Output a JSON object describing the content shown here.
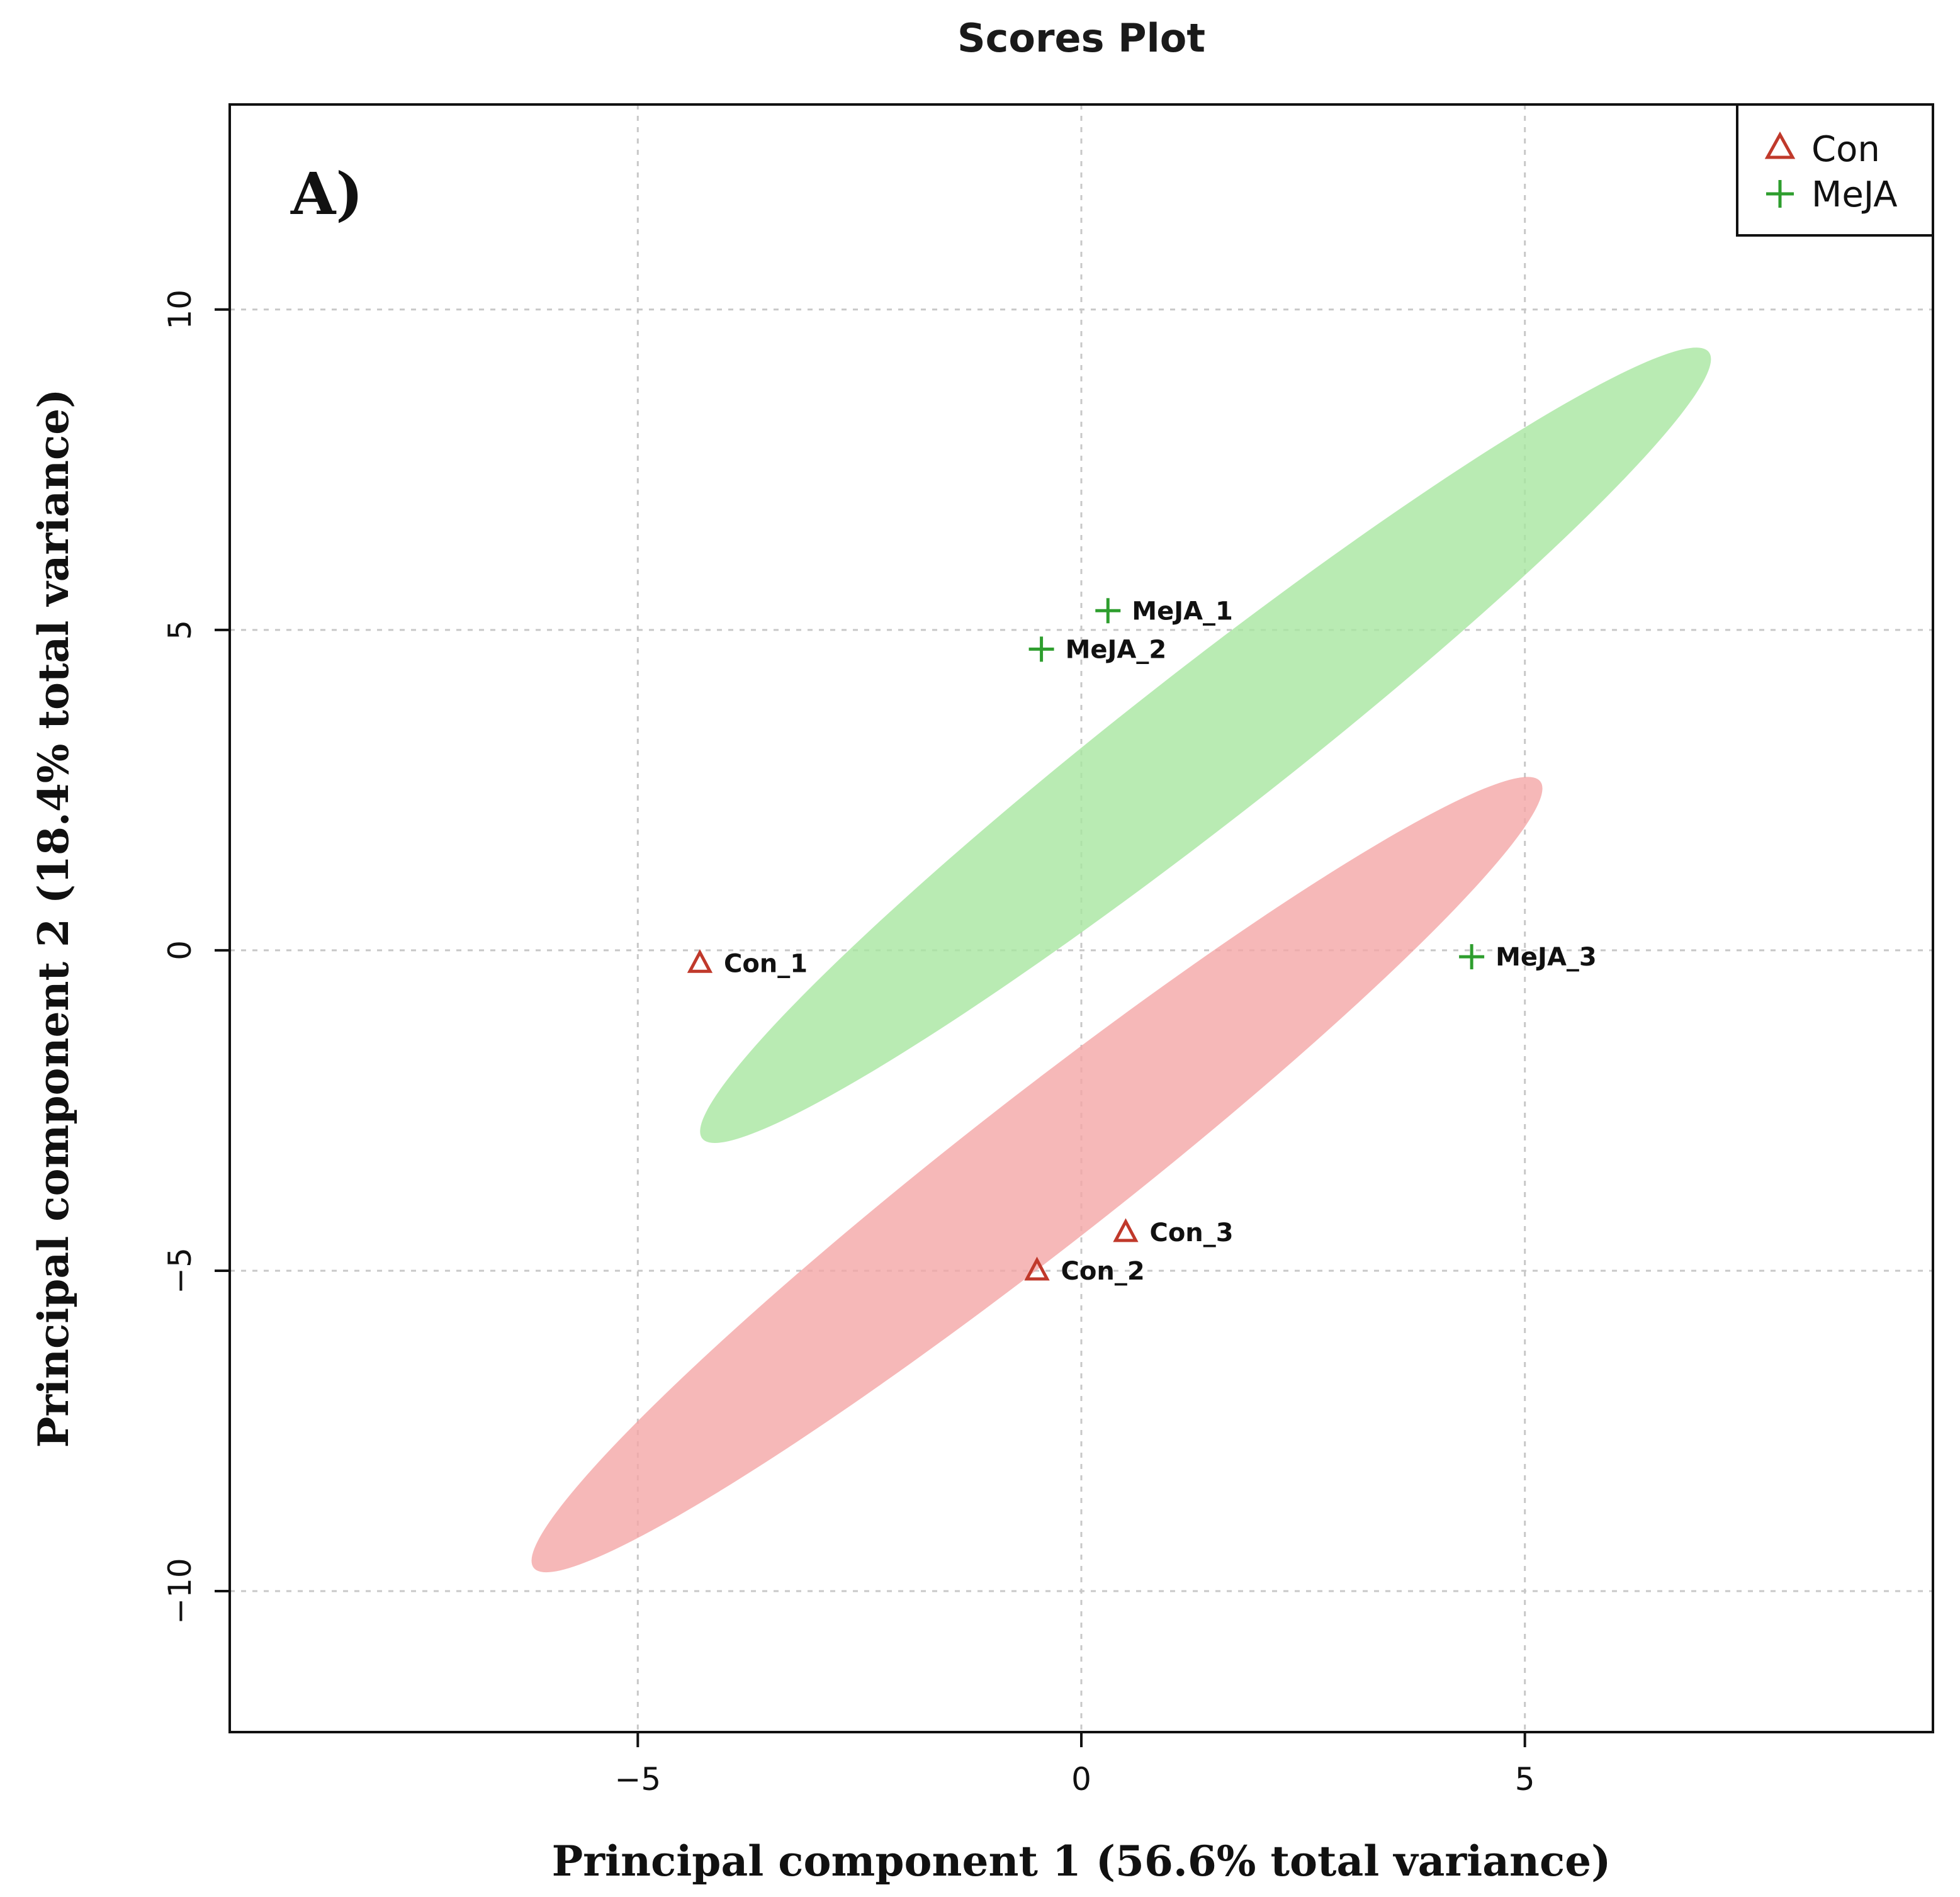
{
  "chart_data": {
    "type": "scatter",
    "title": "Scores Plot",
    "panel_label": "A)",
    "xlabel": "Principal component 1 (56.6% total variance)",
    "ylabel": "Principal component  2 (18.4% total variance)",
    "xlim": [
      -9.6,
      9.6
    ],
    "ylim": [
      -12.2,
      13.2
    ],
    "xticks": [
      -5,
      0,
      5
    ],
    "yticks": [
      -10,
      -5,
      0,
      5,
      10
    ],
    "xtick_labels": [
      "−5",
      "0",
      "5"
    ],
    "ytick_labels": [
      "−10",
      "−5",
      "0",
      "5",
      "10"
    ],
    "grid": true,
    "legend_position": "top-right",
    "series": [
      {
        "name": "Con",
        "marker": "triangle",
        "color": "#c0392b",
        "fill": "#f4a6a6",
        "points": [
          {
            "label": "Con_1",
            "x": -4.3,
            "y": -0.2
          },
          {
            "label": "Con_2",
            "x": -0.5,
            "y": -5.0
          },
          {
            "label": "Con_3",
            "x": 0.5,
            "y": -4.4
          }
        ],
        "ellipse": {
          "cx": -0.5,
          "cy": -3.5,
          "rx": 7.2,
          "ry": 0.85,
          "angle_deg": -38
        }
      },
      {
        "name": "MeJA",
        "marker": "plus",
        "color": "#2e9e2e",
        "fill": "#a8e6a0",
        "points": [
          {
            "label": "MeJA_1",
            "x": 0.3,
            "y": 5.3
          },
          {
            "label": "MeJA_2",
            "x": -0.45,
            "y": 4.7
          },
          {
            "label": "MeJA_3",
            "x": 4.4,
            "y": -0.1
          }
        ],
        "ellipse": {
          "cx": 1.4,
          "cy": 3.2,
          "rx": 7.2,
          "ry": 0.85,
          "angle_deg": -38
        }
      }
    ]
  }
}
